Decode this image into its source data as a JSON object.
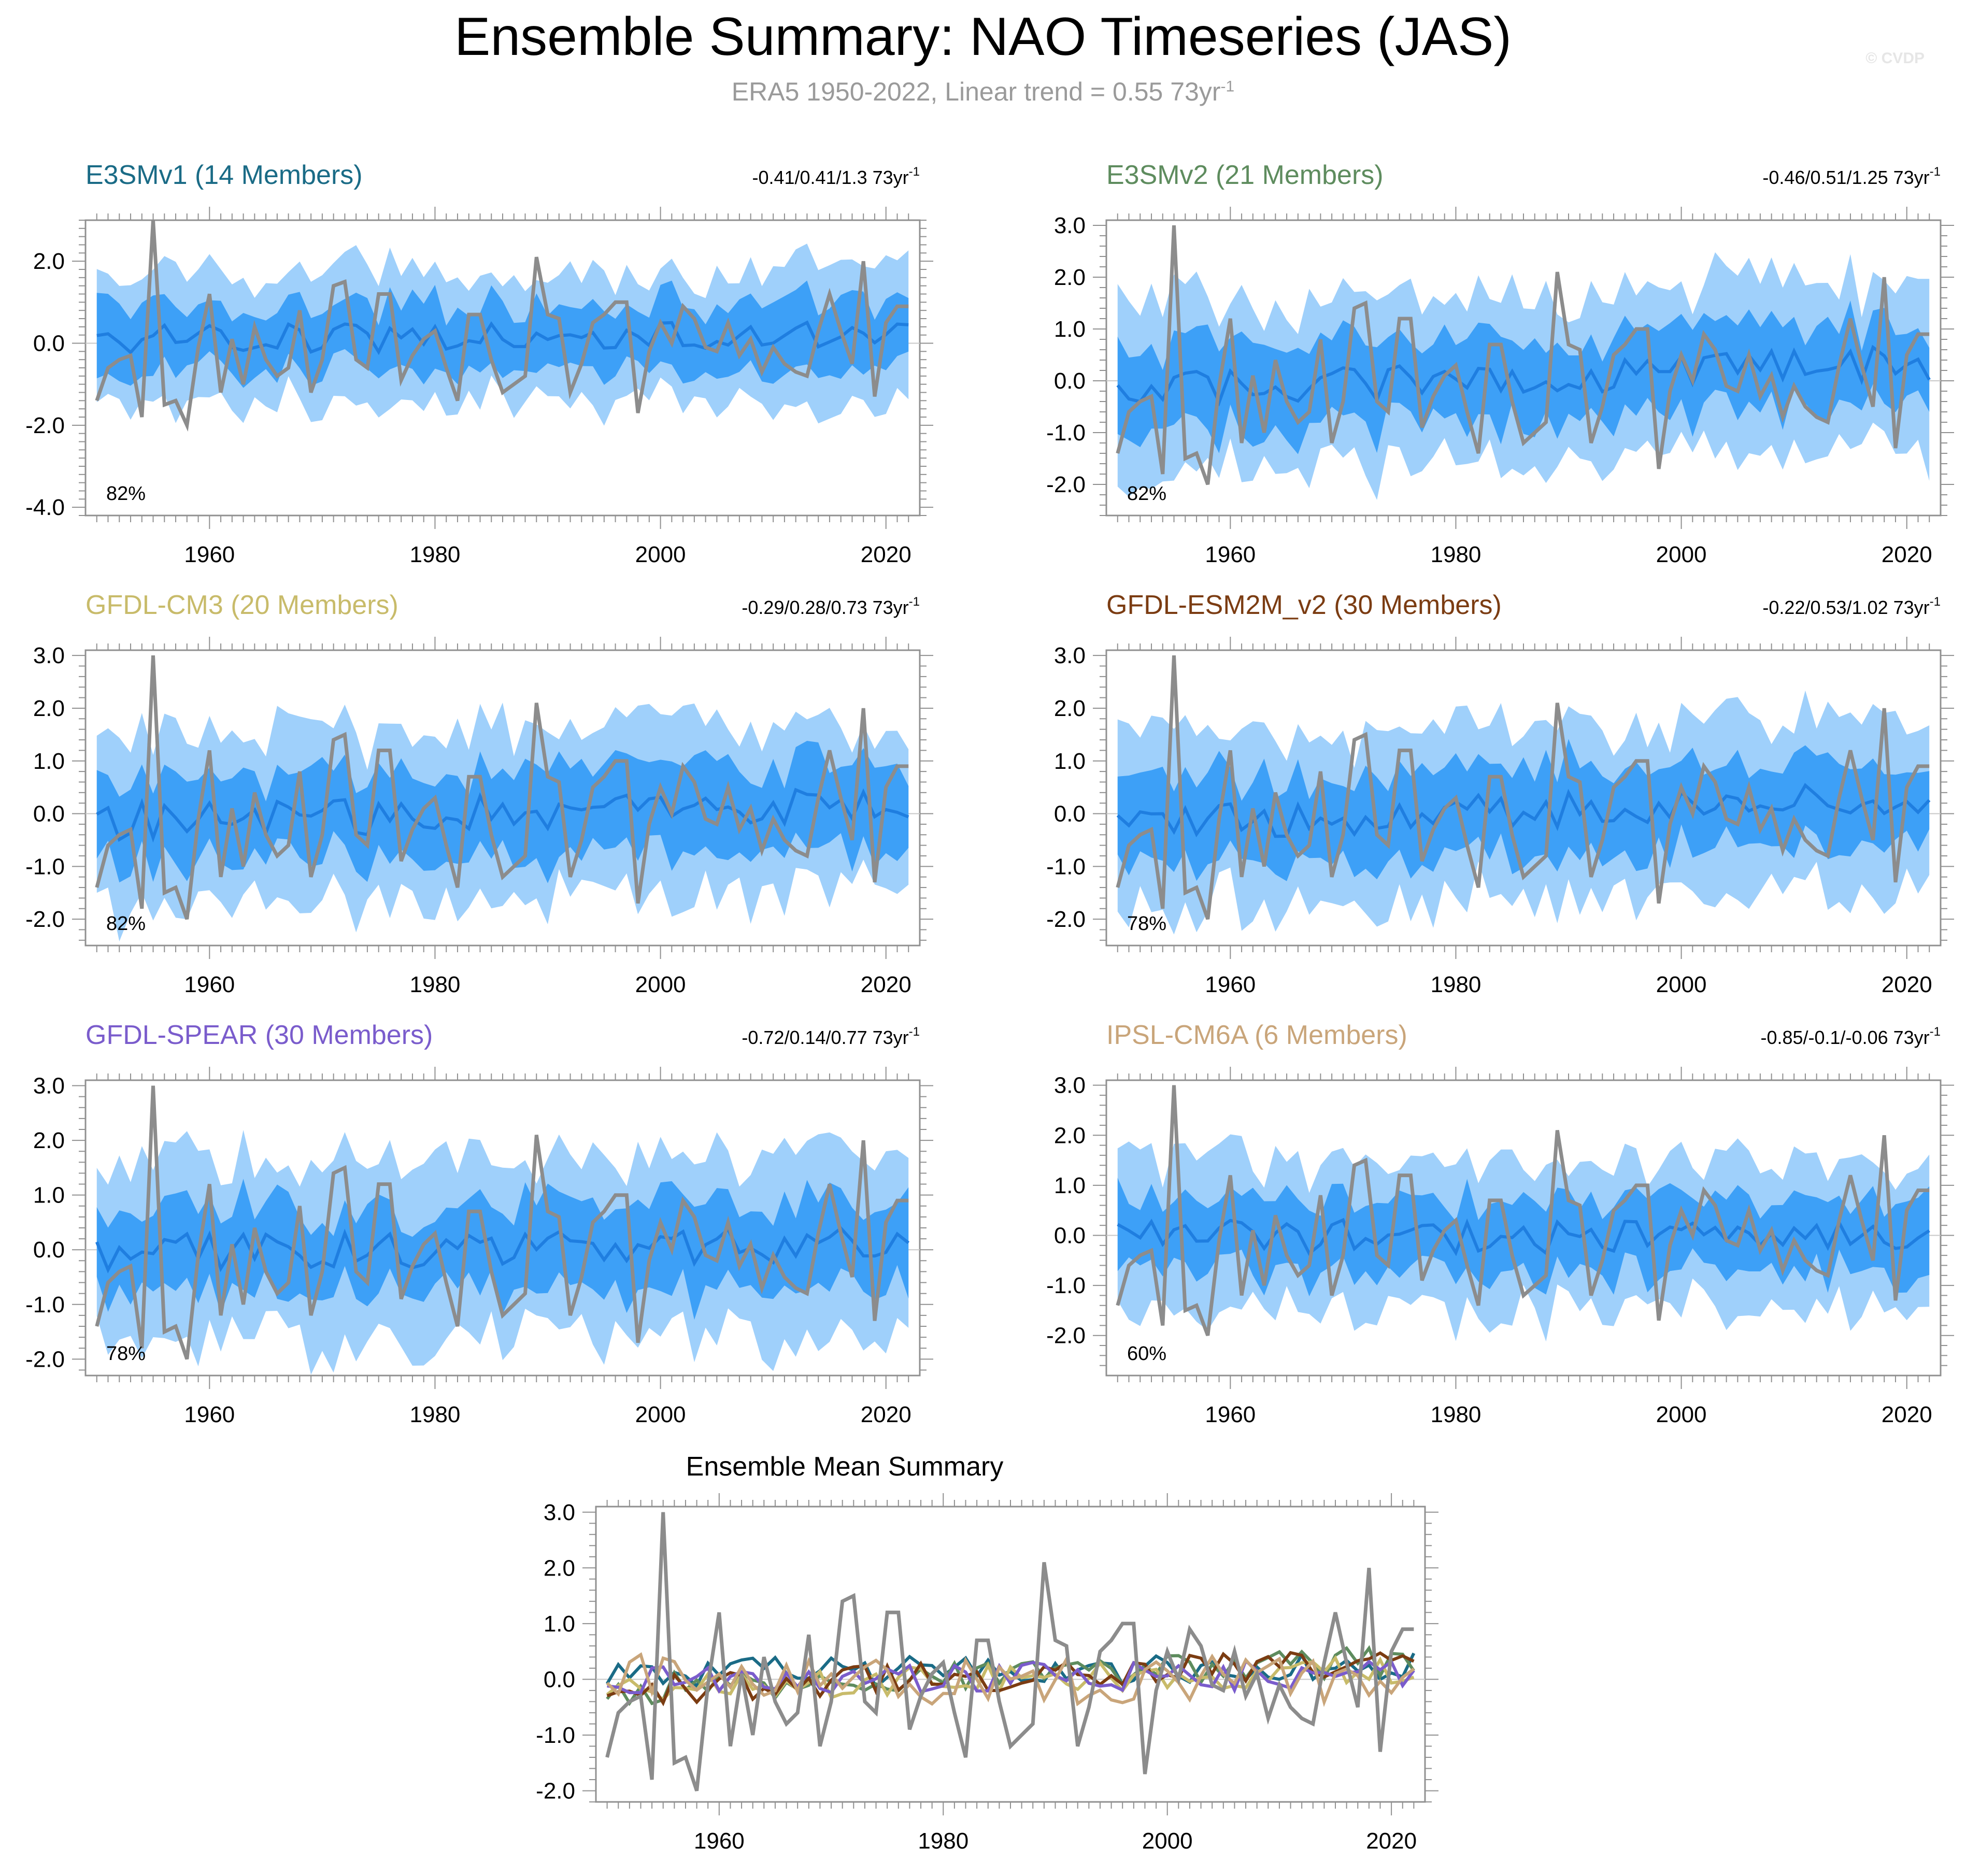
{
  "title": "Ensemble Summary: NAO Timeseries (JAS)",
  "subtitle": {
    "text": "ERA5 1950-2022, Linear trend = 0.55 73yr",
    "superscript": "-1"
  },
  "copyright": "© CVDP",
  "colors": {
    "obs": "#8c8c8c",
    "band_outer": "#9fd0fb",
    "band_inner": "#3da0f7",
    "ens_mean": "#1f7ee0",
    "frame": "#909090"
  },
  "chart_data": [
    {
      "type": "area",
      "title": "E3SMv1 (14 Members)",
      "title_color": "#1a6b86",
      "trend_text": "-0.41/0.41/1.3 73yr",
      "trend_sup": "-1",
      "percent_label": "82%",
      "ylim": [
        -4.2,
        3.0
      ],
      "yticks": [
        -4,
        -2,
        0,
        2
      ],
      "ytick_labels": [
        "-4.0",
        "-2.0",
        "0.0",
        "2.0"
      ],
      "xlim": [
        1949,
        2023
      ],
      "xticks": [
        1960,
        1980,
        2000,
        2020
      ],
      "ens_mean_trend": [
        0.1,
        0.2
      ],
      "obs_on": true
    },
    {
      "type": "area",
      "title": "E3SMv2 (21 Members)",
      "title_color": "#5e8c5e",
      "trend_text": "-0.46/0.51/1.25 73yr",
      "trend_sup": "-1",
      "percent_label": "82%",
      "ylim": [
        -2.6,
        3.1
      ],
      "yticks": [
        -2,
        -1,
        0,
        1,
        2,
        3
      ],
      "ytick_labels": [
        "-2.0",
        "-1.0",
        "0.0",
        "1.0",
        "2.0",
        "3.0"
      ],
      "xlim": [
        1949,
        2023
      ],
      "xticks": [
        1960,
        1980,
        2000,
        2020
      ],
      "ens_mean_trend": [
        -0.2,
        0.35
      ],
      "obs_on": true
    },
    {
      "type": "area",
      "title": "GFDL-CM3 (20 Members)",
      "title_color": "#c8bb6a",
      "trend_text": "-0.29/0.28/0.73 73yr",
      "trend_sup": "-1",
      "percent_label": "82%",
      "ylim": [
        -2.5,
        3.1
      ],
      "yticks": [
        -2,
        -1,
        0,
        1,
        2,
        3
      ],
      "ytick_labels": [
        "-2.0",
        "-1.0",
        "0.0",
        "1.0",
        "2.0",
        "3.0"
      ],
      "xlim": [
        1949,
        2023
      ],
      "xticks": [
        1960,
        1980,
        2000,
        2020
      ],
      "ens_mean_trend": [
        -0.15,
        0.15
      ],
      "obs_on": true
    },
    {
      "type": "area",
      "title": "GFDL-ESM2M_v2 (30 Members)",
      "title_color": "#7b3c12",
      "trend_text": "-0.22/0.53/1.02 73yr",
      "trend_sup": "-1",
      "percent_label": "78%",
      "ylim": [
        -2.5,
        3.1
      ],
      "yticks": [
        -2,
        -1,
        0,
        1,
        2,
        3
      ],
      "ytick_labels": [
        "-2.0",
        "-1.0",
        "0.0",
        "1.0",
        "2.0",
        "3.0"
      ],
      "xlim": [
        1949,
        2023
      ],
      "xticks": [
        1960,
        1980,
        2000,
        2020
      ],
      "ens_mean_trend": [
        -0.2,
        0.35
      ],
      "obs_on": true
    },
    {
      "type": "area",
      "title": "GFDL-SPEAR (30 Members)",
      "title_color": "#7a5ccc",
      "trend_text": "-0.72/0.14/0.77 73yr",
      "trend_sup": "-1",
      "percent_label": "78%",
      "ylim": [
        -2.3,
        3.1
      ],
      "yticks": [
        -2,
        -1,
        0,
        1,
        2,
        3
      ],
      "ytick_labels": [
        "-2.0",
        "-1.0",
        "0.0",
        "1.0",
        "2.0",
        "3.0"
      ],
      "xlim": [
        1949,
        2023
      ],
      "xticks": [
        1960,
        1980,
        2000,
        2020
      ],
      "ens_mean_trend": [
        -0.05,
        0.1
      ],
      "obs_on": true
    },
    {
      "type": "area",
      "title": "IPSL-CM6A (6 Members)",
      "title_color": "#c9a57a",
      "trend_text": "-0.85/-0.1/-0.06 73yr",
      "trend_sup": "-1",
      "percent_label": "60%",
      "ylim": [
        -2.8,
        3.1
      ],
      "yticks": [
        -2,
        -1,
        0,
        1,
        2,
        3
      ],
      "ytick_labels": [
        "-2.0",
        "-1.0",
        "0.0",
        "1.0",
        "2.0",
        "3.0"
      ],
      "xlim": [
        1949,
        2023
      ],
      "xticks": [
        1960,
        1980,
        2000,
        2020
      ],
      "ens_mean_trend": [
        0.0,
        -0.05
      ],
      "obs_on": true
    },
    {
      "type": "line",
      "title": "Ensemble Mean Summary",
      "title_color": "#000000",
      "ylim": [
        -2.2,
        3.1
      ],
      "yticks": [
        -2,
        -1,
        0,
        1,
        2,
        3
      ],
      "ytick_labels": [
        "-2.0",
        "-1.0",
        "0.0",
        "1.0",
        "2.0",
        "3.0"
      ],
      "xlim": [
        1949,
        2023
      ],
      "xticks": [
        1960,
        1980,
        2000,
        2020
      ],
      "series_colors": [
        "#1a6b86",
        "#5e8c5e",
        "#c8bb6a",
        "#7b3c12",
        "#7a5ccc",
        "#c9a57a"
      ]
    }
  ],
  "obs_series": {
    "years_start": 1950,
    "values": [
      -1.4,
      -0.6,
      -0.4,
      -0.3,
      -1.8,
      3.0,
      -1.5,
      -1.4,
      -2.0,
      -0.1,
      1.2,
      -1.2,
      0.1,
      -1.0,
      0.4,
      -0.4,
      -0.8,
      -0.6,
      0.8,
      -1.2,
      -0.4,
      1.4,
      1.5,
      -0.4,
      -0.6,
      1.2,
      1.2,
      -0.9,
      -0.3,
      0.1,
      0.3,
      -0.6,
      -1.4,
      0.7,
      0.7,
      -0.4,
      -1.2,
      -1.0,
      -0.8,
      2.1,
      0.7,
      0.6,
      -1.2,
      -0.5,
      0.5,
      0.7,
      1.0,
      1.0,
      -1.7,
      -0.2,
      0.5,
      0.0,
      0.9,
      0.6,
      -0.1,
      -0.2,
      0.5,
      -0.3,
      0.1,
      -0.7,
      -0.1,
      -0.5,
      -0.7,
      -0.8,
      0.3,
      1.2,
      0.3,
      -0.5,
      2.0,
      -1.3,
      0.5,
      0.9,
      0.9
    ]
  }
}
